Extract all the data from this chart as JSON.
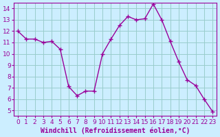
{
  "x": [
    0,
    1,
    2,
    3,
    4,
    5,
    6,
    7,
    8,
    9,
    10,
    11,
    12,
    13,
    14,
    15,
    16,
    17,
    18,
    19,
    20,
    21,
    22,
    23
  ],
  "y": [
    12.0,
    11.3,
    11.3,
    11.0,
    11.1,
    10.4,
    7.1,
    6.3,
    6.7,
    6.7,
    10.0,
    11.3,
    12.5,
    13.3,
    13.0,
    13.1,
    14.4,
    13.0,
    11.1,
    9.3,
    7.7,
    7.2,
    6.0,
    4.9
  ],
  "line_color": "#990099",
  "marker": "+",
  "marker_size": 4,
  "bg_color": "#cceeff",
  "grid_color": "#99cccc",
  "xlabel": "Windchill (Refroidissement éolien,°C)",
  "tick_color": "#990099",
  "spine_color": "#990099",
  "ylim_min": 4.5,
  "ylim_max": 14.5,
  "yticks": [
    5,
    6,
    7,
    8,
    9,
    10,
    11,
    12,
    13,
    14
  ],
  "xticks": [
    0,
    1,
    2,
    3,
    4,
    5,
    6,
    7,
    8,
    9,
    10,
    11,
    12,
    13,
    14,
    15,
    16,
    17,
    18,
    19,
    20,
    21,
    22,
    23
  ],
  "line_width": 1.0,
  "tick_fontsize": 6.5,
  "xlabel_fontsize": 7.0
}
